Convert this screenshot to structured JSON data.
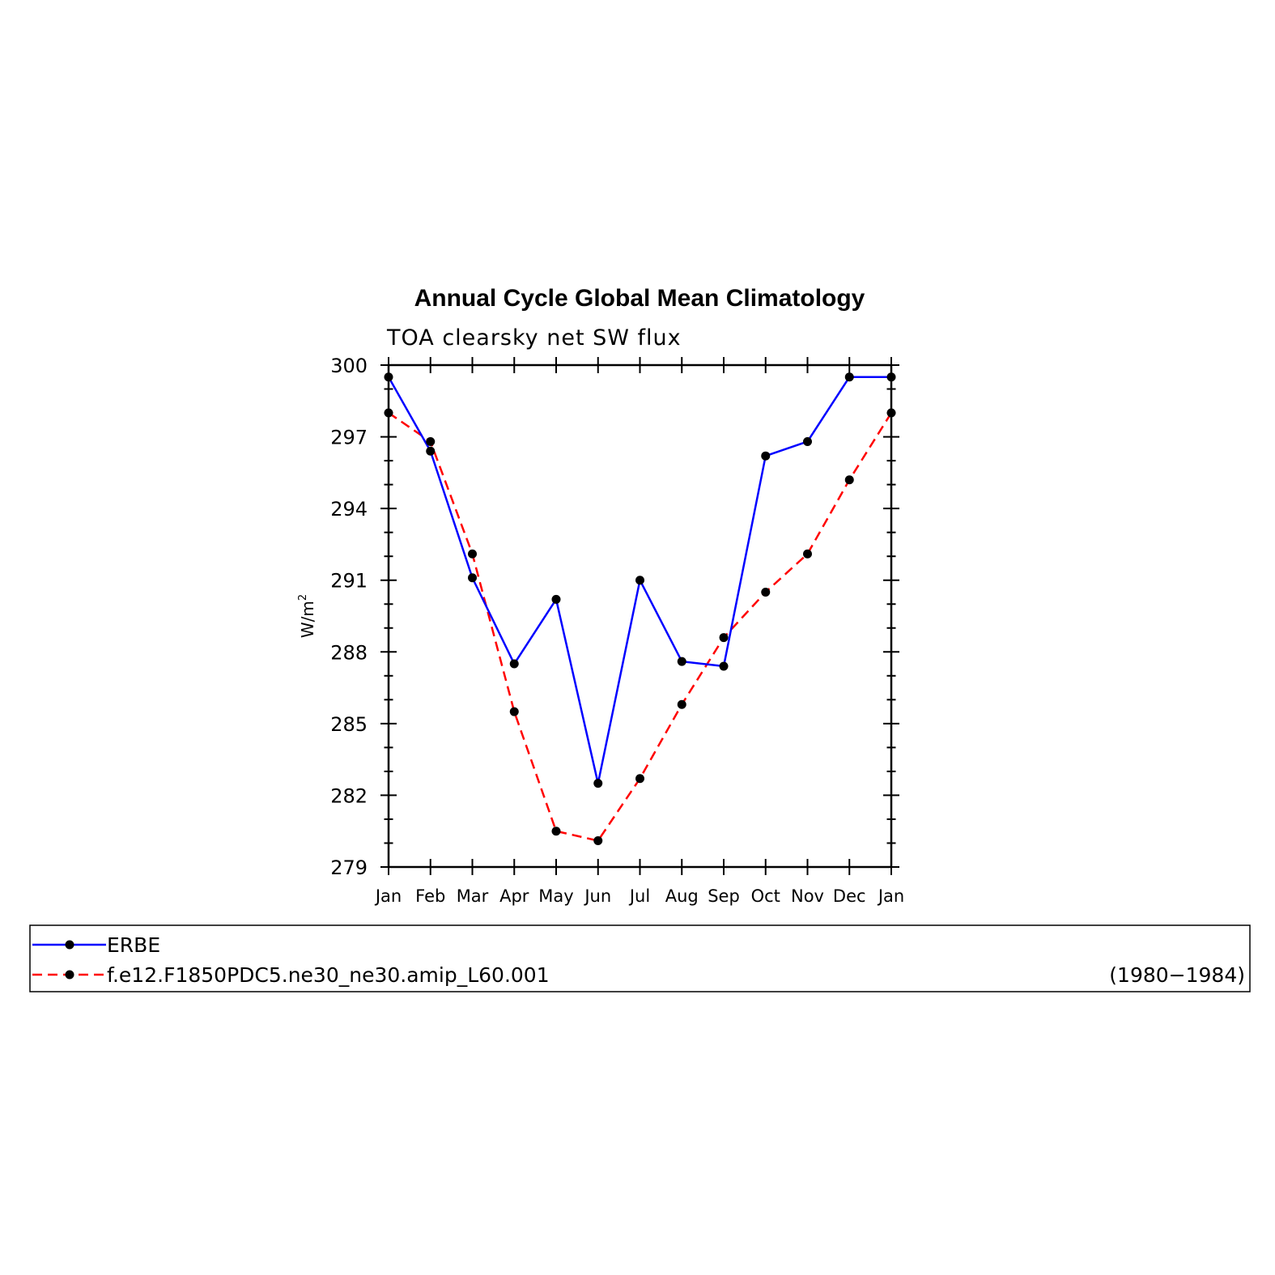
{
  "chart_data": {
    "type": "line",
    "title": "Annual Cycle Global Mean Climatology",
    "subtitle": "TOA clearsky net SW flux",
    "ylabel": "W/m",
    "ylabel_sup": "2",
    "xlabel": "",
    "categories": [
      "Jan",
      "Feb",
      "Mar",
      "Apr",
      "May",
      "Jun",
      "Jul",
      "Aug",
      "Sep",
      "Oct",
      "Nov",
      "Dec",
      "Jan"
    ],
    "ylim": [
      279,
      300
    ],
    "yticks": [
      "279",
      "282",
      "285",
      "288",
      "291",
      "294",
      "297",
      "300"
    ],
    "grid": false,
    "legend_position": "bottom",
    "series": [
      {
        "name": "ERBE",
        "color": "#0000ff",
        "style": "solid",
        "marker": "dot",
        "values": [
          299.5,
          296.4,
          291.1,
          287.5,
          290.2,
          282.5,
          291.0,
          287.6,
          287.4,
          296.2,
          296.8,
          299.5,
          299.5
        ]
      },
      {
        "name": "f.e12.F1850PDC5.ne30_ne30.amip_L60.001",
        "color": "#ff0000",
        "style": "dashed",
        "marker": "dot",
        "values": [
          298.0,
          296.8,
          292.1,
          285.5,
          280.5,
          280.1,
          282.7,
          285.8,
          288.6,
          290.5,
          292.1,
          295.2,
          298.0
        ]
      }
    ],
    "annotation": "(1980−1984)"
  }
}
